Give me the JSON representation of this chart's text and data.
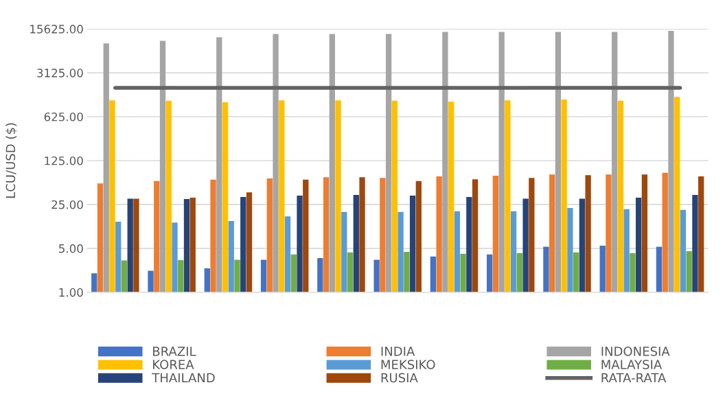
{
  "chart_data": {
    "type": "bar",
    "ylabel": "LCU/USD ($)",
    "categories": [
      null,
      null,
      null,
      null,
      null,
      null,
      null,
      null,
      null,
      null,
      null
    ],
    "series": [
      {
        "name": "BRAZIL",
        "color": "#4472c4",
        "values": [
          2.0,
          2.2,
          2.4,
          3.3,
          3.5,
          3.3,
          3.7,
          4.0,
          5.3,
          5.5,
          5.3
        ]
      },
      {
        "name": "INDIA",
        "color": "#ed7d31",
        "values": [
          54,
          59,
          62,
          65,
          68,
          66,
          70,
          72,
          75,
          75,
          80
        ]
      },
      {
        "name": "INDONESIA",
        "color": "#a5a5a5",
        "values": [
          9200,
          10100,
          11500,
          13000,
          13000,
          13000,
          14000,
          14000,
          14000,
          14000,
          14500
        ]
      },
      {
        "name": "KOREA",
        "color": "#ffc000",
        "values": [
          1140,
          1120,
          1060,
          1140,
          1140,
          1120,
          1090,
          1140,
          1170,
          1120,
          1290
        ]
      },
      {
        "name": "MEKSIKO",
        "color": "#5b9bd5",
        "values": [
          13.3,
          12.9,
          13.6,
          16.2,
          19,
          19,
          19.5,
          19.5,
          22,
          21,
          20.5
        ]
      },
      {
        "name": "MALAYSIA",
        "color": "#70ad47",
        "values": [
          3.2,
          3.25,
          3.3,
          4.0,
          4.3,
          4.4,
          4.1,
          4.2,
          4.3,
          4.2,
          4.5
        ]
      },
      {
        "name": "THAILAND",
        "color": "#264478",
        "values": [
          31,
          30.5,
          33,
          34.6,
          35.6,
          34.6,
          33,
          31,
          31,
          32,
          35.6
        ]
      },
      {
        "name": "RUSIA",
        "color": "#9e480e",
        "values": [
          31,
          32,
          39,
          62,
          68,
          59,
          63,
          66,
          73,
          75,
          70
        ]
      },
      {
        "name": "RATA-RATA",
        "color": "#636363",
        "type": "line",
        "values": [
          1800,
          1800,
          1800,
          1800,
          1800,
          1800,
          1800,
          1800,
          1800,
          1800,
          1800
        ]
      }
    ],
    "log": true,
    "ylim": [
      1,
      15625
    ],
    "yticks": [
      {
        "value": 1,
        "label": "1.00"
      },
      {
        "value": 5,
        "label": "5.00"
      },
      {
        "value": 25,
        "label": "25.00"
      },
      {
        "value": 125,
        "label": "125.00"
      },
      {
        "value": 625,
        "label": "625.00"
      },
      {
        "value": 3125,
        "label": "3125.00"
      },
      {
        "value": 15625,
        "label": "15625.00"
      }
    ],
    "grid": "y",
    "legend": "bottom",
    "tick_labels": "y"
  }
}
